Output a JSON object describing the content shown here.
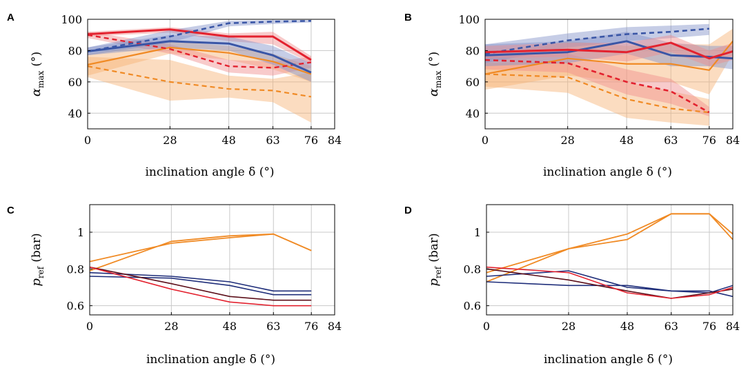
{
  "colors": {
    "red": "#e3222f",
    "blue": "#3a56a6",
    "orange": "#f08a24",
    "navy": "#1f2e7a",
    "maroon": "#5c0f1a",
    "orange_band": "#f7b274",
    "red_band": "#f08b8b",
    "blue_band": "#8090c8"
  },
  "chart_data": [
    {
      "panel": "A",
      "type": "line",
      "xlabel": "inclination angle δ (°)",
      "ylabel": "α",
      "ylabel_sub": "max",
      "ylabel_unit": "(°)",
      "xlim": [
        0,
        84
      ],
      "ylim": [
        30,
        100
      ],
      "xticks": [
        0,
        28,
        48,
        63,
        76,
        84
      ],
      "yticks": [
        40,
        60,
        80,
        100
      ],
      "series": [
        {
          "name": "orange-dashed",
          "color": "orange",
          "dash": true,
          "width": 2.2,
          "x": [
            0,
            28,
            48,
            63,
            76
          ],
          "values": [
            70,
            60,
            55.5,
            54.5,
            50.5
          ],
          "band_lower": [
            63,
            48,
            50,
            47,
            34
          ],
          "band_upper": [
            76,
            74,
            64,
            62,
            66
          ],
          "band_color": "orange_band"
        },
        {
          "name": "orange-solid",
          "color": "orange",
          "dash": false,
          "width": 2.2,
          "x": [
            0,
            28,
            48,
            63,
            76
          ],
          "values": [
            71,
            82,
            78.5,
            73,
            65
          ],
          "band_lower": [
            64,
            78,
            74,
            68,
            60
          ],
          "band_upper": [
            78,
            86,
            83,
            78,
            70
          ],
          "band_color": "orange_band"
        },
        {
          "name": "red-dashed",
          "color": "red",
          "dash": true,
          "width": 2.4,
          "x": [
            0,
            28,
            48,
            63,
            76
          ],
          "values": [
            90,
            81,
            70,
            69,
            72.5
          ],
          "band_lower": [
            88,
            78,
            66,
            64,
            69
          ],
          "band_upper": [
            92,
            84,
            74,
            73,
            76
          ],
          "band_color": "red_band"
        },
        {
          "name": "red-solid",
          "color": "red",
          "dash": false,
          "width": 3,
          "x": [
            0,
            28,
            48,
            63,
            76
          ],
          "values": [
            90.5,
            93.5,
            89,
            89,
            74
          ],
          "band_lower": [
            89,
            91.5,
            86,
            84,
            72
          ],
          "band_upper": [
            92,
            95,
            91,
            92,
            76.5
          ],
          "band_color": "red_band"
        },
        {
          "name": "blue-dashed",
          "color": "blue",
          "dash": true,
          "width": 2.6,
          "x": [
            0,
            28,
            48,
            63,
            76
          ],
          "values": [
            79.5,
            89,
            97.5,
            98.5,
            99
          ],
          "band_lower": [
            77,
            85,
            95.5,
            97,
            98
          ],
          "band_upper": [
            82,
            93,
            99,
            99.5,
            99.5
          ],
          "band_color": "blue_band"
        },
        {
          "name": "blue-solid",
          "color": "blue",
          "dash": false,
          "width": 3,
          "x": [
            0,
            28,
            48,
            63,
            76
          ],
          "values": [
            79.5,
            86,
            84.5,
            77,
            66
          ],
          "band_lower": [
            77,
            82,
            80,
            71,
            60
          ],
          "band_upper": [
            82,
            90,
            89,
            83,
            72
          ],
          "band_color": "blue_band"
        }
      ]
    },
    {
      "panel": "B",
      "type": "line",
      "xlabel": "inclination angle δ (°)",
      "ylabel": "α",
      "ylabel_sub": "max",
      "ylabel_unit": "(°)",
      "xlim": [
        0,
        84
      ],
      "ylim": [
        30,
        100
      ],
      "xticks": [
        0,
        28,
        48,
        63,
        76,
        84
      ],
      "yticks": [
        40,
        60,
        80,
        100
      ],
      "series": [
        {
          "name": "orange-dashed",
          "color": "orange",
          "dash": true,
          "width": 2.2,
          "x": [
            0,
            28,
            48,
            63,
            76
          ],
          "values": [
            65,
            63,
            49,
            43,
            40.5
          ],
          "band_lower": [
            57,
            53,
            37,
            34,
            32
          ],
          "band_upper": [
            72,
            73,
            60,
            54,
            49
          ],
          "band_color": "orange_band"
        },
        {
          "name": "orange-solid",
          "color": "orange",
          "dash": false,
          "width": 2.2,
          "x": [
            0,
            28,
            48,
            63,
            76,
            84
          ],
          "values": [
            65,
            75,
            71.5,
            71.5,
            67.5,
            86
          ],
          "band_lower": [
            55,
            64,
            60,
            60,
            52,
            78
          ],
          "band_upper": [
            76,
            86,
            83,
            84,
            84,
            94
          ],
          "band_color": "orange_band"
        },
        {
          "name": "red-dashed",
          "color": "red",
          "dash": true,
          "width": 2.6,
          "x": [
            0,
            28,
            48,
            63,
            76
          ],
          "values": [
            74,
            72,
            60,
            54,
            40.5
          ],
          "band_lower": [
            68,
            66,
            52,
            46,
            38
          ],
          "band_upper": [
            80,
            78,
            68,
            62,
            44
          ],
          "band_color": "red_band"
        },
        {
          "name": "blue-dashed",
          "color": "blue",
          "dash": true,
          "width": 2.6,
          "x": [
            0,
            28,
            48,
            63,
            76
          ],
          "values": [
            78,
            86.5,
            90.5,
            92,
            94
          ],
          "band_lower": [
            72,
            82,
            86,
            88,
            90
          ],
          "band_upper": [
            84,
            91,
            95,
            96,
            97
          ],
          "band_color": "blue_band"
        },
        {
          "name": "blue-solid",
          "color": "blue",
          "dash": false,
          "width": 3,
          "x": [
            0,
            28,
            48,
            63,
            76,
            84
          ],
          "values": [
            77,
            79,
            86,
            77,
            76,
            75
          ],
          "band_lower": [
            70,
            72,
            78,
            70,
            70,
            68
          ],
          "band_upper": [
            84,
            86,
            92,
            85,
            83,
            83
          ],
          "band_color": "blue_band"
        },
        {
          "name": "red-solid",
          "color": "red",
          "dash": false,
          "width": 3,
          "x": [
            0,
            28,
            48,
            63,
            76,
            84
          ],
          "values": [
            79,
            80.5,
            79,
            85,
            75,
            79.5
          ],
          "band_lower": [
            75,
            76,
            73,
            79,
            70,
            74
          ],
          "band_upper": [
            83,
            85,
            85,
            90,
            80,
            85
          ],
          "band_color": "red_band"
        }
      ]
    },
    {
      "panel": "C",
      "type": "line",
      "xlabel": "inclination angle δ (°)",
      "ylabel": "p",
      "ylabel_sub": "ref",
      "ylabel_unit": "(bar)",
      "xlim": [
        0,
        84
      ],
      "ylim": [
        0.55,
        1.15
      ],
      "xticks": [
        0,
        28,
        48,
        63,
        76,
        84
      ],
      "yticks": [
        0.6,
        0.8,
        1
      ],
      "ytick_labels": [
        "0.6",
        "0.8",
        "1"
      ],
      "series": [
        {
          "name": "orange-1",
          "color": "orange",
          "dash": false,
          "width": 1.8,
          "x": [
            0,
            28,
            48,
            63,
            76
          ],
          "values": [
            0.79,
            0.95,
            0.98,
            0.99,
            0.9
          ]
        },
        {
          "name": "orange-2",
          "color": "orange",
          "dash": false,
          "width": 1.8,
          "x": [
            0,
            28,
            48,
            63,
            76
          ],
          "values": [
            0.84,
            0.94,
            0.97,
            0.99,
            0.9
          ]
        },
        {
          "name": "navy-1",
          "color": "navy",
          "dash": false,
          "width": 1.6,
          "x": [
            0,
            28,
            48,
            63,
            76
          ],
          "values": [
            0.78,
            0.76,
            0.73,
            0.68,
            0.68
          ]
        },
        {
          "name": "navy-2",
          "color": "navy",
          "dash": false,
          "width": 1.6,
          "x": [
            0,
            28,
            48,
            63,
            76
          ],
          "values": [
            0.76,
            0.75,
            0.71,
            0.66,
            0.66
          ]
        },
        {
          "name": "maroon-1",
          "color": "maroon",
          "dash": false,
          "width": 1.6,
          "x": [
            0,
            28,
            48,
            63,
            76
          ],
          "values": [
            0.81,
            0.72,
            0.65,
            0.63,
            0.63
          ]
        },
        {
          "name": "red-1",
          "color": "red",
          "dash": false,
          "width": 1.6,
          "x": [
            0,
            28,
            48,
            63,
            76
          ],
          "values": [
            0.81,
            0.69,
            0.62,
            0.6,
            0.6
          ]
        }
      ]
    },
    {
      "panel": "D",
      "type": "line",
      "xlabel": "inclination angle δ (°)",
      "ylabel": "p",
      "ylabel_sub": "ref",
      "ylabel_unit": "(bar)",
      "xlim": [
        0,
        84
      ],
      "ylim": [
        0.55,
        1.15
      ],
      "xticks": [
        0,
        28,
        48,
        63,
        76,
        84
      ],
      "yticks": [
        0.6,
        0.8,
        1
      ],
      "ytick_labels": [
        "0.6",
        "0.8",
        "1"
      ],
      "series": [
        {
          "name": "orange-1",
          "color": "orange",
          "dash": false,
          "width": 1.8,
          "x": [
            0,
            28,
            48,
            63,
            76,
            84
          ],
          "values": [
            0.73,
            0.91,
            0.99,
            1.1,
            1.1,
            0.96
          ]
        },
        {
          "name": "orange-2",
          "color": "orange",
          "dash": false,
          "width": 1.8,
          "x": [
            0,
            28,
            48,
            63,
            76,
            84
          ],
          "values": [
            0.78,
            0.91,
            0.96,
            1.1,
            1.1,
            0.99
          ]
        },
        {
          "name": "navy-1",
          "color": "navy",
          "dash": false,
          "width": 1.6,
          "x": [
            0,
            28,
            48,
            63,
            76,
            84
          ],
          "values": [
            0.76,
            0.79,
            0.7,
            0.68,
            0.67,
            0.71
          ]
        },
        {
          "name": "navy-2",
          "color": "navy",
          "dash": false,
          "width": 1.6,
          "x": [
            0,
            28,
            48,
            63,
            76,
            84
          ],
          "values": [
            0.73,
            0.71,
            0.71,
            0.68,
            0.68,
            0.65
          ]
        },
        {
          "name": "maroon-1",
          "color": "maroon",
          "dash": false,
          "width": 1.6,
          "x": [
            0,
            28,
            48,
            63,
            76,
            84
          ],
          "values": [
            0.8,
            0.74,
            0.68,
            0.64,
            0.67,
            0.69
          ]
        },
        {
          "name": "red-1",
          "color": "red",
          "dash": false,
          "width": 1.6,
          "x": [
            0,
            28,
            48,
            63,
            76,
            84
          ],
          "values": [
            0.81,
            0.78,
            0.67,
            0.64,
            0.66,
            0.7
          ]
        }
      ]
    }
  ]
}
